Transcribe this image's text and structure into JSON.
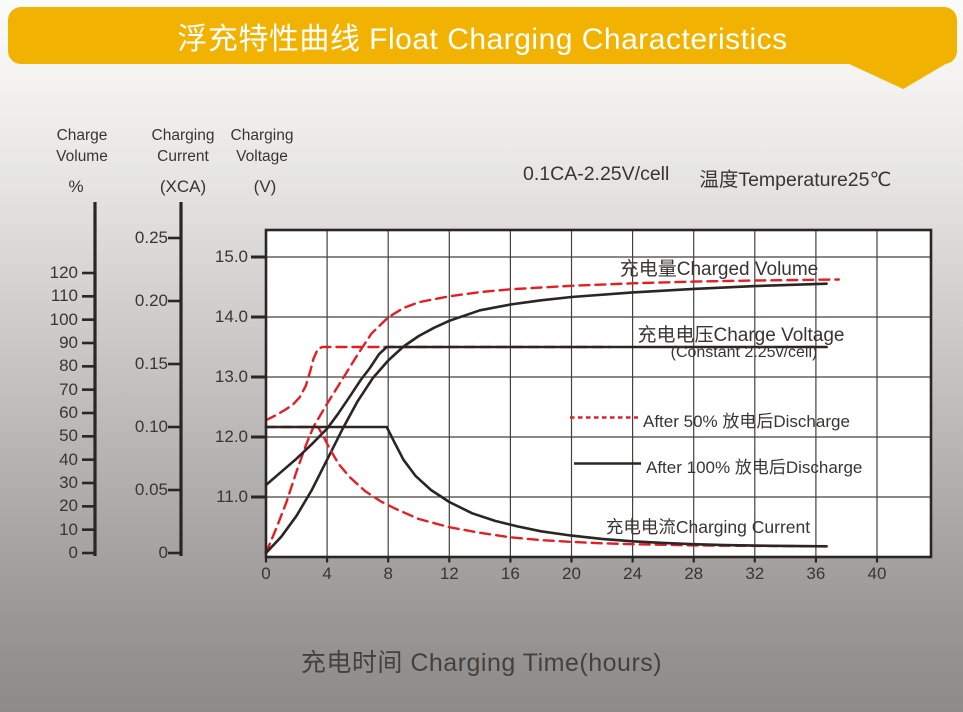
{
  "banner": {
    "title": "浮充特性曲线 Float Charging Characteristics"
  },
  "colors": {
    "banner": "#F2B202",
    "red": "#E41E25",
    "black": "#2B2523",
    "grid": "#45413F",
    "text": "#3A3533",
    "plot_bg": "#FFFFFF"
  },
  "axis_headers": {
    "volume": {
      "line1": "Charge",
      "line2": "Volume",
      "unit": "%"
    },
    "current": {
      "line1": "Charging",
      "line2": "Current",
      "unit": "(XCA)"
    },
    "voltage": {
      "line1": "Charging",
      "line2": "Voltage",
      "unit": "(V)"
    }
  },
  "condition_note": {
    "left": "0.1CA-2.25V/cell",
    "right": "温度Temperature25℃"
  },
  "x_axis_title": "充电时间 Charging Time(hours)",
  "annotations": {
    "charged_volume": "充电量Charged Volume",
    "charge_voltage": "充电电压Charge Voltage",
    "charge_voltage_sub": "(Constant 2.25v/cell)",
    "charging_current": "充电电流Charging Current"
  },
  "legend": [
    {
      "label": "After 50% 放电后Discharge",
      "style": "dashed",
      "color": "#E41E25"
    },
    {
      "label": "After 100% 放电后Discharge",
      "style": "solid",
      "color": "#2B2523"
    }
  ],
  "chart_data": {
    "type": "line",
    "title": "浮充特性曲线 Float Charging Characteristics",
    "condition": "0.1CA-2.25V/cell 温度Temperature25℃",
    "grid": true,
    "x_axis": {
      "label": "充电时间 Charging Time(hours)",
      "unit": "hours",
      "range": [
        0,
        40
      ],
      "ticks": [
        {
          "value": 0,
          "label": "0"
        },
        {
          "value": 4,
          "label": "4"
        },
        {
          "value": 8,
          "label": "8"
        },
        {
          "value": 12,
          "label": "12"
        },
        {
          "value": 16,
          "label": "16"
        },
        {
          "value": 20,
          "label": "20"
        },
        {
          "value": 24,
          "label": "24"
        },
        {
          "value": 28,
          "label": "28"
        },
        {
          "value": 32,
          "label": "32"
        },
        {
          "value": 36,
          "label": "36"
        },
        {
          "value": 40,
          "label": "40"
        }
      ]
    },
    "y_axes": {
      "volume": {
        "label": "Charge Volume",
        "unit": "%",
        "range": [
          0,
          130
        ],
        "ticks": [
          {
            "value": 0,
            "label": "0"
          },
          {
            "value": 10,
            "label": "10"
          },
          {
            "value": 20,
            "label": "20"
          },
          {
            "value": 30,
            "label": "30"
          },
          {
            "value": 40,
            "label": "40"
          },
          {
            "value": 50,
            "label": "50"
          },
          {
            "value": 60,
            "label": "60"
          },
          {
            "value": 70,
            "label": "70"
          },
          {
            "value": 80,
            "label": "80"
          },
          {
            "value": 90,
            "label": "90"
          },
          {
            "value": 100,
            "label": "100"
          },
          {
            "value": 110,
            "label": "110"
          },
          {
            "value": 120,
            "label": "120"
          }
        ]
      },
      "current": {
        "label": "Charging Current",
        "unit": "XCA",
        "range": [
          0,
          0.27
        ],
        "ticks": [
          {
            "value": 0,
            "label": "0"
          },
          {
            "value": 0.05,
            "label": "0.05"
          },
          {
            "value": 0.1,
            "label": "0.10"
          },
          {
            "value": 0.15,
            "label": "0.15"
          },
          {
            "value": 0.2,
            "label": "0.20"
          },
          {
            "value": 0.25,
            "label": "0.25"
          }
        ]
      },
      "voltage": {
        "label": "Charging Voltage",
        "unit": "V",
        "range": [
          10,
          15.5
        ],
        "ticks": [
          {
            "value": 11,
            "label": "11.0"
          },
          {
            "value": 12,
            "label": "12.0"
          },
          {
            "value": 13,
            "label": "13.0"
          },
          {
            "value": 14,
            "label": "14.0"
          },
          {
            "value": 15,
            "label": "15.0"
          }
        ]
      }
    },
    "series": [
      {
        "id": "volume_50",
        "name": "充电量Charged Volume (After 50% 放电后Discharge)",
        "axis": "volume",
        "color": "red",
        "dash": true,
        "points": [
          [
            0,
            0
          ],
          [
            0.7,
            11
          ],
          [
            1.35,
            22
          ],
          [
            2,
            35
          ],
          [
            2.6,
            46
          ],
          [
            3.1,
            54
          ],
          [
            4,
            64
          ],
          [
            5,
            74.5
          ],
          [
            6,
            85
          ],
          [
            6.9,
            94
          ],
          [
            8,
            101
          ],
          [
            9,
            105
          ],
          [
            10,
            107.5
          ],
          [
            12,
            110
          ],
          [
            14,
            111.8
          ],
          [
            16,
            113
          ],
          [
            18,
            113.8
          ],
          [
            20,
            114.5
          ],
          [
            24,
            115.6
          ],
          [
            28,
            116.3
          ],
          [
            32,
            116.8
          ],
          [
            37.5,
            117.2
          ]
        ]
      },
      {
        "id": "volume_100",
        "name": "充电量Charged Volume (After 100% 放电后Discharge)",
        "axis": "volume",
        "color": "black",
        "dash": false,
        "points": [
          [
            0,
            0
          ],
          [
            1,
            7
          ],
          [
            2,
            16
          ],
          [
            3,
            27
          ],
          [
            4,
            40
          ],
          [
            5,
            53
          ],
          [
            6,
            65
          ],
          [
            7,
            75
          ],
          [
            8,
            82.5
          ],
          [
            9,
            88.5
          ],
          [
            10,
            93
          ],
          [
            11,
            96.5
          ],
          [
            12,
            99.5
          ],
          [
            14,
            104
          ],
          [
            16,
            106.5
          ],
          [
            18,
            108.3
          ],
          [
            20,
            109.7
          ],
          [
            24,
            111.7
          ],
          [
            28,
            113.2
          ],
          [
            32,
            114.4
          ],
          [
            36.7,
            115.4
          ]
        ]
      },
      {
        "id": "voltage_50",
        "name": "充电电压Charge Voltage (After 50% 放电后Discharge)",
        "axis": "voltage",
        "color": "red",
        "dash": true,
        "points": [
          [
            0,
            12.28
          ],
          [
            0.7,
            12.37
          ],
          [
            1.3,
            12.46
          ],
          [
            1.8,
            12.55
          ],
          [
            2.2,
            12.66
          ],
          [
            2.6,
            12.85
          ],
          [
            2.9,
            13.1
          ],
          [
            3.1,
            13.3
          ],
          [
            3.4,
            13.47
          ],
          [
            3.7,
            13.5
          ],
          [
            22.5,
            13.5
          ]
        ]
      },
      {
        "id": "voltage_100",
        "name": "充电电压Charge Voltage (After 100% 放电后Discharge)",
        "axis": "voltage",
        "color": "black",
        "dash": false,
        "points": [
          [
            0,
            11.2
          ],
          [
            1,
            11.42
          ],
          [
            2,
            11.64
          ],
          [
            3,
            11.88
          ],
          [
            4,
            12.14
          ],
          [
            4.7,
            12.38
          ],
          [
            5.5,
            12.68
          ],
          [
            6.2,
            12.95
          ],
          [
            6.8,
            13.15
          ],
          [
            7.4,
            13.38
          ],
          [
            7.9,
            13.5
          ],
          [
            36.7,
            13.5
          ]
        ]
      },
      {
        "id": "current_50",
        "name": "充电电流Charging Current (After 50% 放电后Discharge)",
        "axis": "current",
        "color": "red",
        "dash": true,
        "points": [
          [
            0,
            0.1
          ],
          [
            3.4,
            0.1
          ],
          [
            3.7,
            0.094
          ],
          [
            4.2,
            0.082
          ],
          [
            4.8,
            0.07
          ],
          [
            5.5,
            0.06
          ],
          [
            6.5,
            0.049
          ],
          [
            7.5,
            0.041
          ],
          [
            8.5,
            0.035
          ],
          [
            10,
            0.027
          ],
          [
            12,
            0.0205
          ],
          [
            14,
            0.016
          ],
          [
            16,
            0.0125
          ],
          [
            18,
            0.0102
          ],
          [
            20,
            0.0088
          ],
          [
            22,
            0.0077
          ],
          [
            24,
            0.007
          ],
          [
            28,
            0.006
          ],
          [
            32,
            0.0056
          ],
          [
            36.4,
            0.0053
          ]
        ]
      },
      {
        "id": "current_100",
        "name": "充电电流Charging Current (After 100% 放电后Discharge)",
        "axis": "current",
        "color": "black",
        "dash": false,
        "points": [
          [
            0,
            0.1
          ],
          [
            7.9,
            0.1
          ],
          [
            8.4,
            0.088
          ],
          [
            9,
            0.074
          ],
          [
            9.8,
            0.061
          ],
          [
            10.8,
            0.05
          ],
          [
            12,
            0.0405
          ],
          [
            13.5,
            0.0315
          ],
          [
            15,
            0.0255
          ],
          [
            16.5,
            0.021
          ],
          [
            18,
            0.0172
          ],
          [
            20,
            0.0138
          ],
          [
            22,
            0.0112
          ],
          [
            24,
            0.0093
          ],
          [
            26,
            0.008
          ],
          [
            28,
            0.007
          ],
          [
            30,
            0.0063
          ],
          [
            33,
            0.0057
          ],
          [
            36.7,
            0.0053
          ]
        ]
      }
    ]
  }
}
